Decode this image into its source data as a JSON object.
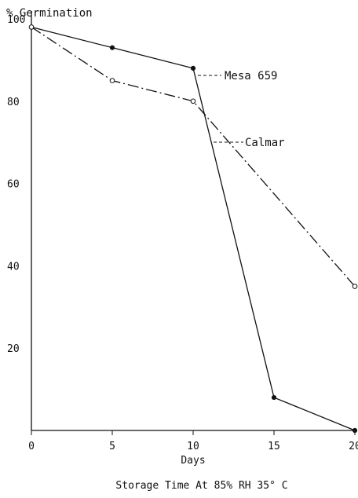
{
  "chart_data": {
    "type": "line",
    "ylabel": "% Germination",
    "xlabel": "Days",
    "caption": "Storage Time At 85% RH 35° C",
    "xlim": [
      0,
      20
    ],
    "ylim": [
      0,
      100
    ],
    "x_ticks": [
      0,
      5,
      10,
      15,
      20
    ],
    "y_ticks": [
      20,
      40,
      60,
      80,
      100
    ],
    "grid": false,
    "series": [
      {
        "name": "Mesa 659",
        "style": "solid",
        "marker": "filled-circle",
        "x": [
          0,
          5,
          10,
          15,
          20
        ],
        "y": [
          98,
          93,
          88,
          8,
          0
        ]
      },
      {
        "name": "Calmar",
        "style": "dash-dot",
        "marker": "open-circle",
        "x": [
          0,
          5,
          10,
          20
        ],
        "y": [
          98,
          85,
          80,
          35
        ]
      }
    ]
  }
}
